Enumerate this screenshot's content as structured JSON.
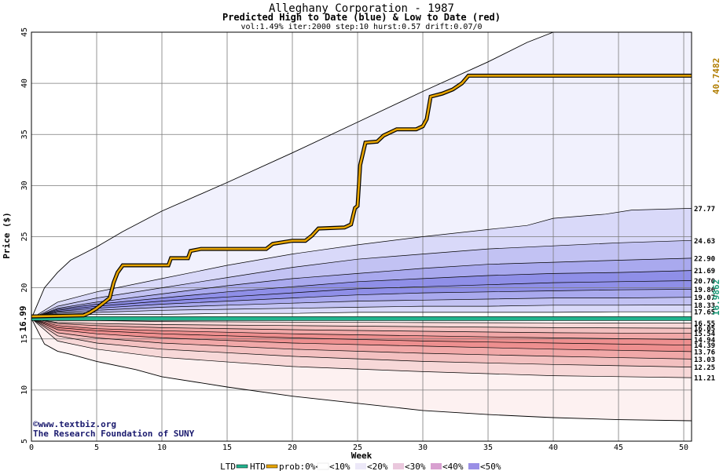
{
  "chart_data": {
    "type": "area",
    "title": "Alleghany Corporation - 1987",
    "subtitle": "Predicted High to Date (blue) &  Low to Date (red)",
    "params": "vol:1.49% iter:2000 step:10 hurst:0.57 drift:0.07/0",
    "xlabel": "Week",
    "ylabel": "Price ($)",
    "xlim": [
      0,
      50.6
    ],
    "ylim": [
      5,
      45
    ],
    "xticks": [
      0,
      5,
      10,
      15,
      20,
      25,
      30,
      35,
      40,
      45,
      50
    ],
    "yticks": [
      5,
      10,
      15,
      20,
      25,
      30,
      35,
      40,
      45
    ],
    "grid": true,
    "start_price": 16.99,
    "start_label": "16.99",
    "actual_high_label": "40.7482",
    "actual_low_label": "16.9862",
    "actual_low_value": 16.9862,
    "colors": {
      "high_band_outer": "#f1f1fd",
      "high_band_mid": "#d9d9f9",
      "high_band_inner": "#c2c2f3",
      "high_band_core": "#8f8fe8",
      "low_band_outer": "#fdf1f1",
      "low_band_mid": "#f7d8d8",
      "low_band_inner": "#f3c0c0",
      "low_band_core": "#ee8f8f",
      "htd_line": "#e7a500",
      "ltd_line": "#22b38e",
      "high_label": "#b07d00",
      "low_label": "#1a9a78",
      "footer_text": "#1a1a6e"
    },
    "upper_envelope": [
      [
        0,
        17
      ],
      [
        1,
        20
      ],
      [
        2,
        21.5
      ],
      [
        3,
        22.7
      ],
      [
        5,
        24
      ],
      [
        7,
        25.5
      ],
      [
        10,
        27.5
      ],
      [
        15,
        30.3
      ],
      [
        20,
        33.2
      ],
      [
        25,
        36.2
      ],
      [
        30,
        39.2
      ],
      [
        35,
        42.1
      ],
      [
        38,
        44
      ],
      [
        40,
        45
      ]
    ],
    "lower_envelope": [
      [
        0,
        17
      ],
      [
        1,
        14.5
      ],
      [
        2,
        13.8
      ],
      [
        3,
        13.5
      ],
      [
        5,
        12.8
      ],
      [
        8,
        12
      ],
      [
        10,
        11.3
      ],
      [
        15,
        10.3
      ],
      [
        20,
        9.4
      ],
      [
        25,
        8.7
      ],
      [
        30,
        8
      ],
      [
        35,
        7.6
      ],
      [
        40,
        7.3
      ],
      [
        45,
        7.1
      ],
      [
        50.6,
        7
      ]
    ],
    "high_percentiles": [
      {
        "label": "27.77",
        "value": 27.77,
        "points": [
          [
            0,
            17
          ],
          [
            2,
            18.6
          ],
          [
            5,
            19.6
          ],
          [
            10,
            20.9
          ],
          [
            15,
            22.2
          ],
          [
            20,
            23.3
          ],
          [
            25,
            24.2
          ],
          [
            30,
            25
          ],
          [
            35,
            25.7
          ],
          [
            38,
            26.1
          ],
          [
            40,
            26.8
          ],
          [
            44,
            27.2
          ],
          [
            46,
            27.6
          ],
          [
            50.6,
            27.77
          ]
        ]
      },
      {
        "label": "24.63",
        "value": 24.63,
        "points": [
          [
            0,
            17
          ],
          [
            2,
            18.2
          ],
          [
            5,
            19
          ],
          [
            10,
            20
          ],
          [
            15,
            21
          ],
          [
            20,
            22
          ],
          [
            25,
            22.8
          ],
          [
            30,
            23.3
          ],
          [
            35,
            23.8
          ],
          [
            40,
            24.1
          ],
          [
            45,
            24.4
          ],
          [
            50.6,
            24.63
          ]
        ]
      },
      {
        "label": "22.90",
        "value": 22.9,
        "points": [
          [
            0,
            17
          ],
          [
            2,
            18
          ],
          [
            5,
            18.6
          ],
          [
            10,
            19.4
          ],
          [
            15,
            20.2
          ],
          [
            20,
            20.9
          ],
          [
            25,
            21.4
          ],
          [
            30,
            21.9
          ],
          [
            35,
            22.3
          ],
          [
            40,
            22.5
          ],
          [
            45,
            22.7
          ],
          [
            50.6,
            22.9
          ]
        ]
      },
      {
        "label": "21.69",
        "value": 21.69,
        "points": [
          [
            0,
            17
          ],
          [
            2,
            17.9
          ],
          [
            5,
            18.4
          ],
          [
            10,
            19
          ],
          [
            15,
            19.6
          ],
          [
            20,
            20.1
          ],
          [
            25,
            20.6
          ],
          [
            30,
            20.9
          ],
          [
            35,
            21.2
          ],
          [
            40,
            21.4
          ],
          [
            45,
            21.5
          ],
          [
            50.6,
            21.69
          ]
        ]
      },
      {
        "label": "20.70",
        "value": 20.7,
        "points": [
          [
            0,
            17
          ],
          [
            2,
            17.8
          ],
          [
            5,
            18.2
          ],
          [
            10,
            18.7
          ],
          [
            15,
            19.1
          ],
          [
            20,
            19.5
          ],
          [
            25,
            19.9
          ],
          [
            30,
            20.1
          ],
          [
            35,
            20.3
          ],
          [
            40,
            20.5
          ],
          [
            45,
            20.6
          ],
          [
            50.6,
            20.7
          ]
        ]
      },
      {
        "label": "19.86",
        "value": 19.86,
        "points": [
          [
            0,
            17
          ],
          [
            2,
            17.7
          ],
          [
            5,
            18
          ],
          [
            10,
            18.4
          ],
          [
            15,
            18.7
          ],
          [
            20,
            19
          ],
          [
            25,
            19.3
          ],
          [
            30,
            19.5
          ],
          [
            35,
            19.6
          ],
          [
            40,
            19.7
          ],
          [
            45,
            19.8
          ],
          [
            50.6,
            19.86
          ]
        ]
      },
      {
        "label": "19.07",
        "value": 19.07,
        "points": [
          [
            0,
            17
          ],
          [
            2,
            17.6
          ],
          [
            5,
            17.8
          ],
          [
            10,
            18.1
          ],
          [
            15,
            18.3
          ],
          [
            20,
            18.5
          ],
          [
            25,
            18.7
          ],
          [
            30,
            18.8
          ],
          [
            35,
            18.9
          ],
          [
            40,
            19
          ],
          [
            45,
            19
          ],
          [
            50.6,
            19.07
          ]
        ]
      },
      {
        "label": "18.33",
        "value": 18.33,
        "points": [
          [
            0,
            17
          ],
          [
            2,
            17.5
          ],
          [
            5,
            17.6
          ],
          [
            10,
            17.8
          ],
          [
            15,
            17.9
          ],
          [
            20,
            18
          ],
          [
            25,
            18.1
          ],
          [
            30,
            18.2
          ],
          [
            35,
            18.2
          ],
          [
            40,
            18.3
          ],
          [
            45,
            18.3
          ],
          [
            50.6,
            18.33
          ]
        ]
      },
      {
        "label": "17.65",
        "value": 17.65,
        "points": [
          [
            0,
            17
          ],
          [
            2,
            17.3
          ],
          [
            5,
            17.4
          ],
          [
            10,
            17.4
          ],
          [
            15,
            17.5
          ],
          [
            20,
            17.5
          ],
          [
            25,
            17.6
          ],
          [
            30,
            17.6
          ],
          [
            35,
            17.6
          ],
          [
            40,
            17.6
          ],
          [
            45,
            17.65
          ],
          [
            50.6,
            17.65
          ]
        ]
      }
    ],
    "low_percentiles": [
      {
        "label": "16.55",
        "value": 16.55,
        "points": [
          [
            0,
            17
          ],
          [
            2,
            16.8
          ],
          [
            5,
            16.8
          ],
          [
            10,
            16.7
          ],
          [
            20,
            16.65
          ],
          [
            30,
            16.6
          ],
          [
            40,
            16.57
          ],
          [
            50.6,
            16.55
          ]
        ]
      },
      {
        "label": "16.05",
        "value": 16.05,
        "points": [
          [
            0,
            17
          ],
          [
            2,
            16.6
          ],
          [
            5,
            16.5
          ],
          [
            10,
            16.4
          ],
          [
            20,
            16.3
          ],
          [
            30,
            16.2
          ],
          [
            40,
            16.1
          ],
          [
            50.6,
            16.05
          ]
        ]
      },
      {
        "label": "15.54",
        "value": 15.54,
        "points": [
          [
            0,
            17
          ],
          [
            2,
            16.5
          ],
          [
            5,
            16.3
          ],
          [
            10,
            16.1
          ],
          [
            20,
            15.9
          ],
          [
            30,
            15.75
          ],
          [
            40,
            15.6
          ],
          [
            50.6,
            15.54
          ]
        ]
      },
      {
        "label": "14.94",
        "value": 14.94,
        "points": [
          [
            0,
            17
          ],
          [
            2,
            16.3
          ],
          [
            5,
            16
          ],
          [
            10,
            15.8
          ],
          [
            20,
            15.5
          ],
          [
            30,
            15.3
          ],
          [
            40,
            15.1
          ],
          [
            50.6,
            14.94
          ]
        ]
      },
      {
        "label": "14.39",
        "value": 14.39,
        "points": [
          [
            0,
            17
          ],
          [
            2,
            16.1
          ],
          [
            5,
            15.8
          ],
          [
            10,
            15.5
          ],
          [
            20,
            15.1
          ],
          [
            30,
            14.8
          ],
          [
            40,
            14.6
          ],
          [
            50.6,
            14.39
          ]
        ]
      },
      {
        "label": "13.76",
        "value": 13.76,
        "points": [
          [
            0,
            17
          ],
          [
            2,
            15.9
          ],
          [
            5,
            15.5
          ],
          [
            10,
            15.1
          ],
          [
            20,
            14.6
          ],
          [
            30,
            14.3
          ],
          [
            40,
            14
          ],
          [
            50.6,
            13.76
          ]
        ]
      },
      {
        "label": "13.03",
        "value": 13.03,
        "points": [
          [
            0,
            17
          ],
          [
            2,
            15.6
          ],
          [
            5,
            15.1
          ],
          [
            10,
            14.6
          ],
          [
            20,
            14
          ],
          [
            30,
            13.6
          ],
          [
            40,
            13.3
          ],
          [
            50.6,
            13.03
          ]
        ]
      },
      {
        "label": "12.25",
        "value": 12.25,
        "points": [
          [
            0,
            17
          ],
          [
            2,
            15.3
          ],
          [
            5,
            14.6
          ],
          [
            10,
            14
          ],
          [
            20,
            13.3
          ],
          [
            30,
            12.8
          ],
          [
            40,
            12.5
          ],
          [
            50.6,
            12.25
          ]
        ]
      },
      {
        "label": "11.21",
        "value": 11.21,
        "points": [
          [
            0,
            17
          ],
          [
            2,
            14.8
          ],
          [
            5,
            14
          ],
          [
            10,
            13.2
          ],
          [
            20,
            12.3
          ],
          [
            30,
            11.8
          ],
          [
            40,
            11.4
          ],
          [
            50.6,
            11.21
          ]
        ]
      }
    ],
    "htd_path": [
      [
        0,
        17.2
      ],
      [
        4,
        17.3
      ],
      [
        4.5,
        17.6
      ],
      [
        5,
        18
      ],
      [
        5.5,
        18.5
      ],
      [
        6,
        19
      ],
      [
        6.3,
        20.5
      ],
      [
        6.6,
        21.5
      ],
      [
        7,
        22.2
      ],
      [
        10.5,
        22.2
      ],
      [
        10.7,
        22.9
      ],
      [
        12,
        22.9
      ],
      [
        12.2,
        23.6
      ],
      [
        13,
        23.8
      ],
      [
        18,
        23.8
      ],
      [
        18.5,
        24.3
      ],
      [
        20,
        24.6
      ],
      [
        21,
        24.6
      ],
      [
        21.5,
        25.1
      ],
      [
        22,
        25.8
      ],
      [
        24,
        25.9
      ],
      [
        24.5,
        26.2
      ],
      [
        24.8,
        27.8
      ],
      [
        25,
        28
      ],
      [
        25.2,
        32
      ],
      [
        25.6,
        34.2
      ],
      [
        26.5,
        34.3
      ],
      [
        27,
        34.9
      ],
      [
        28,
        35.5
      ],
      [
        29.5,
        35.5
      ],
      [
        30,
        35.8
      ],
      [
        30.3,
        36.5
      ],
      [
        30.6,
        38.7
      ],
      [
        31.5,
        39
      ],
      [
        32.3,
        39.4
      ],
      [
        33,
        40
      ],
      [
        33.5,
        40.75
      ],
      [
        50.6,
        40.75
      ]
    ]
  },
  "footer": {
    "line1": "©www.textbiz.org",
    "line2": "The Research Foundation of SUNY"
  },
  "legend": {
    "ltd": "LTD",
    "htd": "HTD",
    "prob": "prob:0%<",
    "p10": "<10%",
    "p20": "<20%",
    "p30": "<30%",
    "p40": "<40%",
    "p50": "<50%"
  }
}
